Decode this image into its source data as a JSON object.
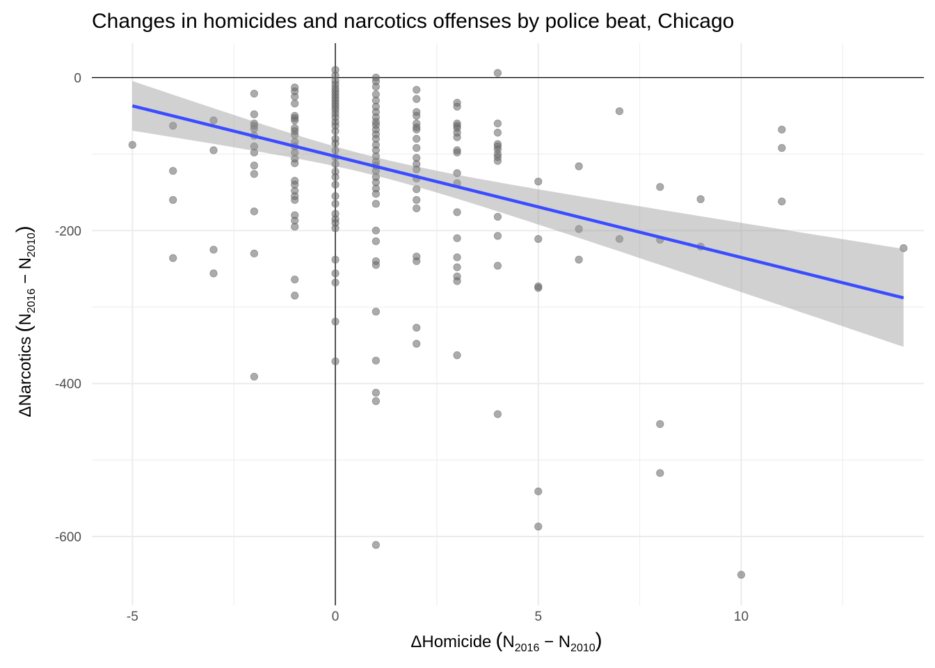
{
  "chart_data": {
    "type": "scatter",
    "title": "Changes in homicides and narcotics offenses by police beat, Chicago",
    "xlabel": {
      "main": "ΔHomicide",
      "open": "(",
      "n1": "N",
      "sub1": "2016",
      "minus": " − ",
      "n2": "N",
      "sub2": "2010",
      "close": ")"
    },
    "ylabel": {
      "main": "ΔNarcotics",
      "open": "(",
      "n1": "N",
      "sub1": "2016",
      "minus": " − ",
      "n2": "N",
      "sub2": "2010",
      "close": ")"
    },
    "xlim": [
      -6,
      14.5
    ],
    "ylim": [
      -690,
      45
    ],
    "x_ticks": [
      -5,
      0,
      5,
      10
    ],
    "x_tick_labels": [
      "-5",
      "0",
      "5",
      "10"
    ],
    "y_ticks": [
      0,
      -200,
      -400,
      -600
    ],
    "y_tick_labels": [
      "0",
      "-200",
      "-400",
      "-600"
    ],
    "grid": true,
    "reference_lines": {
      "x": 0,
      "y": 0
    },
    "colors": {
      "points": "#666666",
      "trend_line": "#3a4cff",
      "confidence_band": "#cccccc",
      "grid": "#ebebeb",
      "reference": "#000000"
    },
    "trend": {
      "x": [
        -5,
        14
      ],
      "y": [
        -37,
        -288
      ],
      "ci_upper": [
        -4,
        -224
      ],
      "ci_lower": [
        -69,
        -352
      ]
    },
    "points": [
      [
        -5,
        -88
      ],
      [
        -4,
        -63
      ],
      [
        -4,
        -122
      ],
      [
        -4,
        -160
      ],
      [
        -4,
        -236
      ],
      [
        -3,
        -56
      ],
      [
        -3,
        -95
      ],
      [
        -3,
        -225
      ],
      [
        -3,
        -256
      ],
      [
        -2,
        -21
      ],
      [
        -2,
        -48
      ],
      [
        -2,
        -60
      ],
      [
        -2,
        -63
      ],
      [
        -2,
        -67
      ],
      [
        -2,
        -76
      ],
      [
        -2,
        -90
      ],
      [
        -2,
        -98
      ],
      [
        -2,
        -115
      ],
      [
        -2,
        -126
      ],
      [
        -2,
        -175
      ],
      [
        -2,
        -230
      ],
      [
        -2,
        -391
      ],
      [
        -1,
        -13
      ],
      [
        -1,
        -18
      ],
      [
        -1,
        -25
      ],
      [
        -1,
        -34
      ],
      [
        -1,
        -50
      ],
      [
        -1,
        -53
      ],
      [
        -1,
        -56
      ],
      [
        -1,
        -66
      ],
      [
        -1,
        -70
      ],
      [
        -1,
        -75
      ],
      [
        -1,
        -84
      ],
      [
        -1,
        -90
      ],
      [
        -1,
        -98
      ],
      [
        -1,
        -106
      ],
      [
        -1,
        -112
      ],
      [
        -1,
        -135
      ],
      [
        -1,
        -140
      ],
      [
        -1,
        -148
      ],
      [
        -1,
        -155
      ],
      [
        -1,
        -160
      ],
      [
        -1,
        -180
      ],
      [
        -1,
        -187
      ],
      [
        -1,
        -195
      ],
      [
        -1,
        -264
      ],
      [
        -1,
        -285
      ],
      [
        0,
        10
      ],
      [
        0,
        3
      ],
      [
        0,
        -4
      ],
      [
        0,
        -9
      ],
      [
        0,
        -14
      ],
      [
        0,
        -18
      ],
      [
        0,
        -22
      ],
      [
        0,
        -26
      ],
      [
        0,
        -30
      ],
      [
        0,
        -34
      ],
      [
        0,
        -38
      ],
      [
        0,
        -42
      ],
      [
        0,
        -47
      ],
      [
        0,
        -52
      ],
      [
        0,
        -58
      ],
      [
        0,
        -63
      ],
      [
        0,
        -70
      ],
      [
        0,
        -80
      ],
      [
        0,
        -86
      ],
      [
        0,
        -95
      ],
      [
        0,
        -104
      ],
      [
        0,
        -113
      ],
      [
        0,
        -123
      ],
      [
        0,
        -130
      ],
      [
        0,
        -140
      ],
      [
        0,
        -155
      ],
      [
        0,
        -165
      ],
      [
        0,
        -178
      ],
      [
        0,
        -185
      ],
      [
        0,
        -190
      ],
      [
        0,
        -197
      ],
      [
        0,
        -238
      ],
      [
        0,
        -256
      ],
      [
        0,
        -268
      ],
      [
        0,
        -319
      ],
      [
        0,
        -371
      ],
      [
        1,
        0
      ],
      [
        1,
        -5
      ],
      [
        1,
        -12
      ],
      [
        1,
        -22
      ],
      [
        1,
        -30
      ],
      [
        1,
        -38
      ],
      [
        1,
        -45
      ],
      [
        1,
        -52
      ],
      [
        1,
        -58
      ],
      [
        1,
        -62
      ],
      [
        1,
        -68
      ],
      [
        1,
        -74
      ],
      [
        1,
        -80
      ],
      [
        1,
        -88
      ],
      [
        1,
        -95
      ],
      [
        1,
        -103
      ],
      [
        1,
        -110
      ],
      [
        1,
        -115
      ],
      [
        1,
        -122
      ],
      [
        1,
        -130
      ],
      [
        1,
        -137
      ],
      [
        1,
        -145
      ],
      [
        1,
        -152
      ],
      [
        1,
        -165
      ],
      [
        1,
        -200
      ],
      [
        1,
        -214
      ],
      [
        1,
        -240
      ],
      [
        1,
        -245
      ],
      [
        1,
        -306
      ],
      [
        1,
        -370
      ],
      [
        1,
        -412
      ],
      [
        1,
        -423
      ],
      [
        1,
        -611
      ],
      [
        2,
        -16
      ],
      [
        2,
        -28
      ],
      [
        2,
        -45
      ],
      [
        2,
        -50
      ],
      [
        2,
        -60
      ],
      [
        2,
        -65
      ],
      [
        2,
        -68
      ],
      [
        2,
        -80
      ],
      [
        2,
        -92
      ],
      [
        2,
        -105
      ],
      [
        2,
        -113
      ],
      [
        2,
        -120
      ],
      [
        2,
        -132
      ],
      [
        2,
        -146
      ],
      [
        2,
        -160
      ],
      [
        2,
        -171
      ],
      [
        2,
        -234
      ],
      [
        2,
        -240
      ],
      [
        2,
        -327
      ],
      [
        2,
        -348
      ],
      [
        3,
        -33
      ],
      [
        3,
        -38
      ],
      [
        3,
        -60
      ],
      [
        3,
        -63
      ],
      [
        3,
        -66
      ],
      [
        3,
        -72
      ],
      [
        3,
        -78
      ],
      [
        3,
        -95
      ],
      [
        3,
        -98
      ],
      [
        3,
        -125
      ],
      [
        3,
        -138
      ],
      [
        3,
        -176
      ],
      [
        3,
        -210
      ],
      [
        3,
        -235
      ],
      [
        3,
        -248
      ],
      [
        3,
        -260
      ],
      [
        3,
        -266
      ],
      [
        3,
        -363
      ],
      [
        4,
        6
      ],
      [
        4,
        -60
      ],
      [
        4,
        -72
      ],
      [
        4,
        -87
      ],
      [
        4,
        -90
      ],
      [
        4,
        -94
      ],
      [
        4,
        -100
      ],
      [
        4,
        -104
      ],
      [
        4,
        -109
      ],
      [
        4,
        -182
      ],
      [
        4,
        -207
      ],
      [
        4,
        -246
      ],
      [
        4,
        -440
      ],
      [
        5,
        -136
      ],
      [
        5,
        -211
      ],
      [
        5,
        -273
      ],
      [
        5,
        -275
      ],
      [
        5,
        -541
      ],
      [
        5,
        -587
      ],
      [
        6,
        -116
      ],
      [
        6,
        -198
      ],
      [
        6,
        -238
      ],
      [
        7,
        -44
      ],
      [
        7,
        -211
      ],
      [
        8,
        -143
      ],
      [
        8,
        -212
      ],
      [
        8,
        -453
      ],
      [
        8,
        -517
      ],
      [
        9,
        -159
      ],
      [
        9,
        -221
      ],
      [
        10,
        -650
      ],
      [
        11,
        -68
      ],
      [
        11,
        -92
      ],
      [
        11,
        -162
      ],
      [
        14,
        -223
      ]
    ]
  }
}
